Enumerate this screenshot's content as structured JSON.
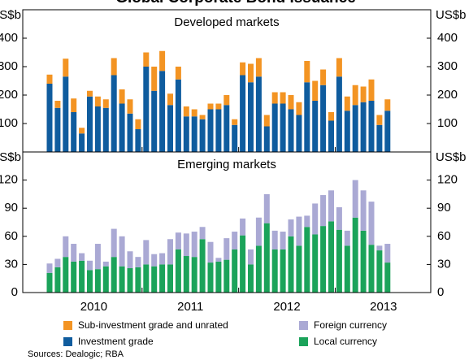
{
  "chart_data": [
    {
      "type": "stacked-bar",
      "title": "Global Corporate Bond Issuance",
      "subtitle": "Developed markets",
      "unit": "US$b",
      "ylim": [
        0,
        500
      ],
      "yticks": [
        100,
        200,
        300,
        400
      ],
      "xticks": [
        "2010",
        "2011",
        "2012",
        "2013"
      ],
      "series": [
        {
          "name": "Investment grade",
          "color": "#0f5c9e",
          "values": [
            240,
            155,
            265,
            140,
            65,
            195,
            160,
            155,
            270,
            170,
            135,
            80,
            300,
            215,
            285,
            165,
            255,
            125,
            125,
            115,
            150,
            150,
            165,
            95,
            270,
            245,
            265,
            90,
            170,
            170,
            150,
            130,
            245,
            180,
            235,
            110,
            265,
            145,
            165,
            175,
            180,
            95,
            145
          ]
        },
        {
          "name": "Sub-investment grade and unrated",
          "color": "#f39423",
          "values": [
            32,
            25,
            63,
            48,
            20,
            20,
            35,
            30,
            60,
            50,
            50,
            35,
            50,
            85,
            70,
            40,
            45,
            35,
            25,
            15,
            20,
            20,
            35,
            20,
            45,
            65,
            65,
            40,
            40,
            40,
            50,
            45,
            75,
            70,
            55,
            30,
            65,
            50,
            70,
            55,
            75,
            35,
            40
          ]
        }
      ]
    },
    {
      "type": "stacked-bar",
      "subtitle": "Emerging markets",
      "unit": "US$b",
      "ylim": [
        0,
        150
      ],
      "yticks": [
        0,
        30,
        60,
        90,
        120
      ],
      "series": [
        {
          "name": "Local currency",
          "color": "#1ba35a",
          "values": [
            21,
            27,
            38,
            33,
            34,
            24,
            25,
            28,
            38,
            28,
            26,
            27,
            30,
            28,
            30,
            30,
            46,
            39,
            38,
            57,
            32,
            33,
            35,
            46,
            61,
            30,
            50,
            74,
            46,
            46,
            60,
            50,
            70,
            62,
            71,
            76,
            67,
            50,
            80,
            66,
            51,
            45,
            32
          ]
        },
        {
          "name": "Foreign currency",
          "color": "#aaa9d4",
          "values": [
            10,
            9,
            22,
            19,
            8,
            10,
            27,
            5,
            30,
            32,
            18,
            11,
            26,
            13,
            12,
            27,
            18,
            24,
            27,
            13,
            22,
            4,
            23,
            19,
            18,
            16,
            30,
            31,
            20,
            19,
            18,
            31,
            12,
            33,
            33,
            33,
            24,
            16,
            40,
            43,
            46,
            5,
            20
          ]
        }
      ]
    }
  ],
  "source": "Sources: Dealogic; RBA"
}
